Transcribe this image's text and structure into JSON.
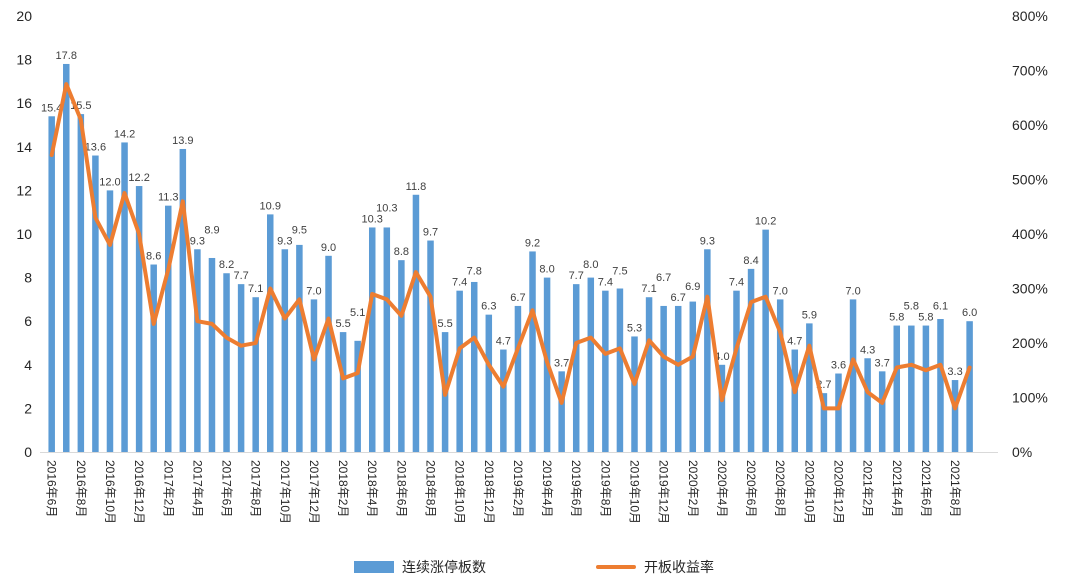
{
  "chart_data": {
    "type": "combo-bar-line",
    "title": "",
    "grid": "off",
    "legend_position": "bottom",
    "bar_color": "#5B9BD5",
    "line_color": "#ED7D31",
    "axis_line_color": "#d9d9d9",
    "label_color": "#404040",
    "tick_color": "#262626",
    "left_axis": {
      "min": 0,
      "max": 20,
      "step": 2
    },
    "right_axis": {
      "min_pct": 0,
      "max_pct": 800,
      "step_pct": 100
    },
    "x_tick_labels": [
      "2016年6月",
      "2016年8月",
      "2016年10月",
      "2016年12月",
      "2017年2月",
      "2017年4月",
      "2017年6月",
      "2017年8月",
      "2017年10月",
      "2017年12月",
      "2018年2月",
      "2018年4月",
      "2018年6月",
      "2018年8月",
      "2018年10月",
      "2018年12月",
      "2019年2月",
      "2019年4月",
      "2019年6月",
      "2019年8月",
      "2019年10月",
      "2019年12月",
      "2020年2月",
      "2020年4月",
      "2020年6月",
      "2020年8月",
      "2020年10月",
      "2020年12月",
      "2021年2月",
      "2021年4月",
      "2021年6月",
      "2021年8月"
    ],
    "series": [
      {
        "name": "连续涨停板数",
        "type": "bar",
        "axis": "left",
        "color": "#5B9BD5",
        "labels_shown": true,
        "values": [
          15.4,
          17.8,
          15.5,
          13.6,
          12.0,
          14.2,
          12.2,
          8.6,
          11.3,
          13.9,
          9.3,
          8.9,
          8.2,
          7.7,
          7.1,
          10.9,
          9.3,
          9.5,
          7.0,
          9.0,
          5.5,
          5.1,
          10.3,
          10.3,
          8.8,
          11.8,
          9.7,
          5.5,
          7.4,
          7.8,
          6.3,
          4.7,
          6.7,
          9.2,
          8.0,
          3.7,
          7.7,
          8.0,
          7.4,
          7.5,
          5.3,
          7.1,
          6.7,
          6.7,
          6.9,
          9.3,
          4.0,
          7.4,
          8.4,
          10.2,
          7.0,
          4.7,
          5.9,
          2.7,
          3.6,
          7.0,
          4.3,
          3.7,
          5.8,
          5.8,
          5.8,
          6.1,
          3.3,
          6.0
        ]
      },
      {
        "name": "开板收益率",
        "type": "line",
        "axis": "right",
        "color": "#ED7D31",
        "labels_shown": false,
        "values_pct_estimated": [
          545,
          675,
          610,
          430,
          380,
          475,
          400,
          235,
          335,
          460,
          240,
          235,
          210,
          195,
          200,
          300,
          245,
          280,
          170,
          245,
          135,
          145,
          290,
          280,
          250,
          330,
          285,
          105,
          190,
          210,
          160,
          120,
          190,
          260,
          165,
          90,
          200,
          210,
          180,
          190,
          125,
          205,
          175,
          160,
          175,
          285,
          95,
          190,
          275,
          285,
          220,
          110,
          195,
          80,
          80,
          170,
          110,
          90,
          155,
          160,
          150,
          160,
          80,
          155
        ]
      }
    ],
    "legend": [
      {
        "label": "连续涨停板数",
        "swatch": "bar",
        "color": "#5B9BD5"
      },
      {
        "label": "开板收益率",
        "swatch": "line",
        "color": "#ED7D31"
      }
    ]
  }
}
